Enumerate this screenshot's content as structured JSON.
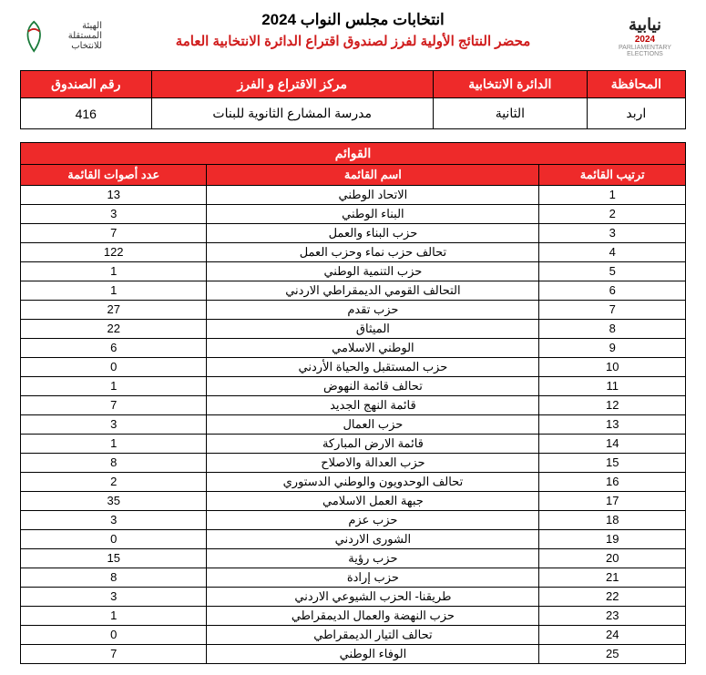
{
  "header": {
    "title_main": "انتخابات مجلس النواب 2024",
    "title_sub": "محضر النتائج الأولية لفرز لصندوق اقتراع الدائرة الانتخابية العامة",
    "logo_right_year": "2024",
    "logo_right_word": "نيابية",
    "logo_left_l1": "الهيئة المستقلة",
    "logo_left_l2": "للانتخاب"
  },
  "info": {
    "headers": {
      "governorate": "المحافظة",
      "district": "الدائرة الانتخابية",
      "center": "مركز الاقتراع و الفرز",
      "box": "رقم الصندوق"
    },
    "values": {
      "governorate": "اربد",
      "district": "الثانية",
      "center": "مدرسة المشارع الثانوية للبنات",
      "box": "416"
    }
  },
  "lists": {
    "title": "القوائم",
    "headers": {
      "rank": "ترتيب القائمة",
      "name": "اسم القائمة",
      "votes": "عدد أصوات القائمة"
    },
    "rows": [
      {
        "rank": "1",
        "name": "الاتحاد الوطني",
        "votes": "13"
      },
      {
        "rank": "2",
        "name": "البناء الوطني",
        "votes": "3"
      },
      {
        "rank": "3",
        "name": "حزب البناء والعمل",
        "votes": "7"
      },
      {
        "rank": "4",
        "name": "تحالف حزب نماء وحزب العمل",
        "votes": "122"
      },
      {
        "rank": "5",
        "name": "حزب التنمية الوطني",
        "votes": "1"
      },
      {
        "rank": "6",
        "name": "التحالف القومي الديمقراطي الاردني",
        "votes": "1"
      },
      {
        "rank": "7",
        "name": "حزب تقدم",
        "votes": "27"
      },
      {
        "rank": "8",
        "name": "الميثاق",
        "votes": "22"
      },
      {
        "rank": "9",
        "name": "الوطني الاسلامي",
        "votes": "6"
      },
      {
        "rank": "10",
        "name": "حزب المستقبل والحياة الأردني",
        "votes": "0"
      },
      {
        "rank": "11",
        "name": "تحالف قائمة النهوض",
        "votes": "1"
      },
      {
        "rank": "12",
        "name": "قائمة النهج الجديد",
        "votes": "7"
      },
      {
        "rank": "13",
        "name": "حزب العمال",
        "votes": "3"
      },
      {
        "rank": "14",
        "name": "قائمة الارض المباركة",
        "votes": "1"
      },
      {
        "rank": "15",
        "name": "حزب العدالة والاصلاح",
        "votes": "8"
      },
      {
        "rank": "16",
        "name": "تحالف الوحدويون والوطني الدستوري",
        "votes": "2"
      },
      {
        "rank": "17",
        "name": "جبهة العمل الاسلامي",
        "votes": "35"
      },
      {
        "rank": "18",
        "name": "حزب عزم",
        "votes": "3"
      },
      {
        "rank": "19",
        "name": "الشورى الاردني",
        "votes": "0"
      },
      {
        "rank": "20",
        "name": "حزب رؤية",
        "votes": "15"
      },
      {
        "rank": "21",
        "name": "حزب إرادة",
        "votes": "8"
      },
      {
        "rank": "22",
        "name": "طريقنا- الحزب الشيوعي الاردني",
        "votes": "3"
      },
      {
        "rank": "23",
        "name": "حزب النهضة والعمال الديمقراطي",
        "votes": "1"
      },
      {
        "rank": "24",
        "name": "تحالف التيار الديمقراطي",
        "votes": "0"
      },
      {
        "rank": "25",
        "name": "الوفاء الوطني",
        "votes": "7"
      }
    ]
  },
  "colors": {
    "accent": "#ee2a2a",
    "title_sub": "#d01c1c",
    "border": "#000000",
    "bg": "#ffffff"
  }
}
